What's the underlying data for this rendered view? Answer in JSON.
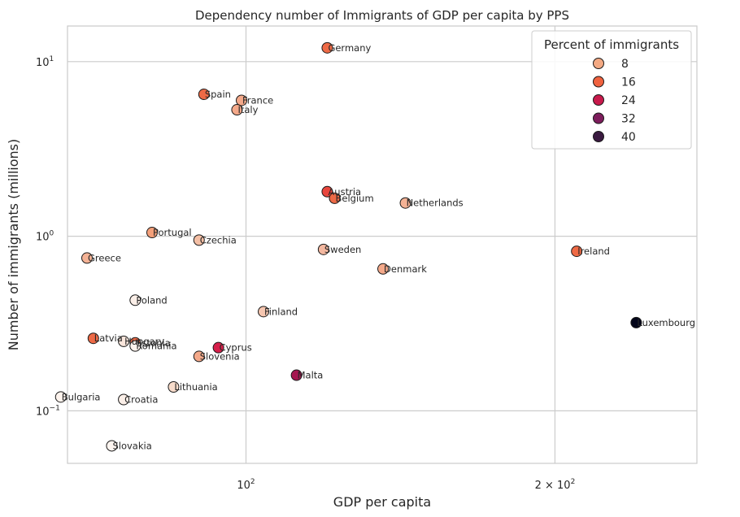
{
  "chart_data": {
    "type": "scatter",
    "title": "Dependency number of Immigrants of GDP per capita by PPS",
    "xlabel": "GDP per capita",
    "ylabel": "Number of immigrants (millions)",
    "x_scale": "log",
    "y_scale": "log",
    "xlim": [
      67,
      275
    ],
    "ylim": [
      0.05,
      16
    ],
    "x_ticks": [
      {
        "value": 100,
        "base": "10",
        "exp": "2"
      },
      {
        "value": 200,
        "mant": "2 × 10",
        "exp": "2"
      }
    ],
    "y_ticks": [
      {
        "value": 0.1,
        "base": "10",
        "exp": "−1"
      },
      {
        "value": 1,
        "base": "10",
        "exp": "0"
      },
      {
        "value": 10,
        "base": "10",
        "exp": "1"
      }
    ],
    "grid": true,
    "legend": {
      "title": "Percent of immigrants",
      "position": "top-right",
      "entries": [
        {
          "label": "8",
          "color": "#f3a983"
        },
        {
          "label": "16",
          "color": "#f0623f"
        },
        {
          "label": "24",
          "color": "#c81a4c"
        },
        {
          "label": "32",
          "color": "#7d1d5c"
        },
        {
          "label": "40",
          "color": "#3a1a40"
        }
      ]
    },
    "points": [
      {
        "name": "Germany",
        "x": 120,
        "y": 12.0,
        "color": "#ee6a46"
      },
      {
        "name": "Spain",
        "x": 91,
        "y": 6.5,
        "color": "#ee6a46"
      },
      {
        "name": "France",
        "x": 99,
        "y": 6.0,
        "color": "#f4a98a"
      },
      {
        "name": "Italy",
        "x": 98,
        "y": 5.3,
        "color": "#f4a98a"
      },
      {
        "name": "Austria",
        "x": 120,
        "y": 1.8,
        "color": "#e8463d"
      },
      {
        "name": "Belgium",
        "x": 122,
        "y": 1.65,
        "color": "#ee6a46"
      },
      {
        "name": "Netherlands",
        "x": 143,
        "y": 1.55,
        "color": "#f4b295"
      },
      {
        "name": "Portugal",
        "x": 81,
        "y": 1.05,
        "color": "#f4a07a"
      },
      {
        "name": "Czechia",
        "x": 90,
        "y": 0.95,
        "color": "#f4bfa5"
      },
      {
        "name": "Sweden",
        "x": 119,
        "y": 0.84,
        "color": "#f4b8a0"
      },
      {
        "name": "Ireland",
        "x": 210,
        "y": 0.82,
        "color": "#ef6a45"
      },
      {
        "name": "Greece",
        "x": 70,
        "y": 0.75,
        "color": "#f4b295"
      },
      {
        "name": "Denmark",
        "x": 136,
        "y": 0.65,
        "color": "#f4a98a"
      },
      {
        "name": "Poland",
        "x": 78,
        "y": 0.43,
        "color": "#fbefe8"
      },
      {
        "name": "Finland",
        "x": 104,
        "y": 0.37,
        "color": "#f6c6b0"
      },
      {
        "name": "Luxembourg",
        "x": 240,
        "y": 0.32,
        "color": "#03051a"
      },
      {
        "name": "Latvia",
        "x": 71,
        "y": 0.26,
        "color": "#ee6a46"
      },
      {
        "name": "Hungary",
        "x": 76,
        "y": 0.25,
        "color": "#fae6dc"
      },
      {
        "name": "Estonia",
        "x": 78,
        "y": 0.245,
        "color": "#ee6a46"
      },
      {
        "name": "Romania",
        "x": 78,
        "y": 0.235,
        "color": "#fdf3ed"
      },
      {
        "name": "Cyprus",
        "x": 94,
        "y": 0.23,
        "color": "#d61f4a"
      },
      {
        "name": "Slovenia",
        "x": 90,
        "y": 0.205,
        "color": "#f4a98a"
      },
      {
        "name": "Malta",
        "x": 112,
        "y": 0.16,
        "color": "#a51750"
      },
      {
        "name": "Lithuania",
        "x": 85,
        "y": 0.137,
        "color": "#f8dccb"
      },
      {
        "name": "Bulgaria",
        "x": 66,
        "y": 0.12,
        "color": "#fdf3ed"
      },
      {
        "name": "Croatia",
        "x": 76,
        "y": 0.116,
        "color": "#fbefe8"
      },
      {
        "name": "Slovakia",
        "x": 74,
        "y": 0.063,
        "color": "#fdf5f0"
      }
    ]
  }
}
